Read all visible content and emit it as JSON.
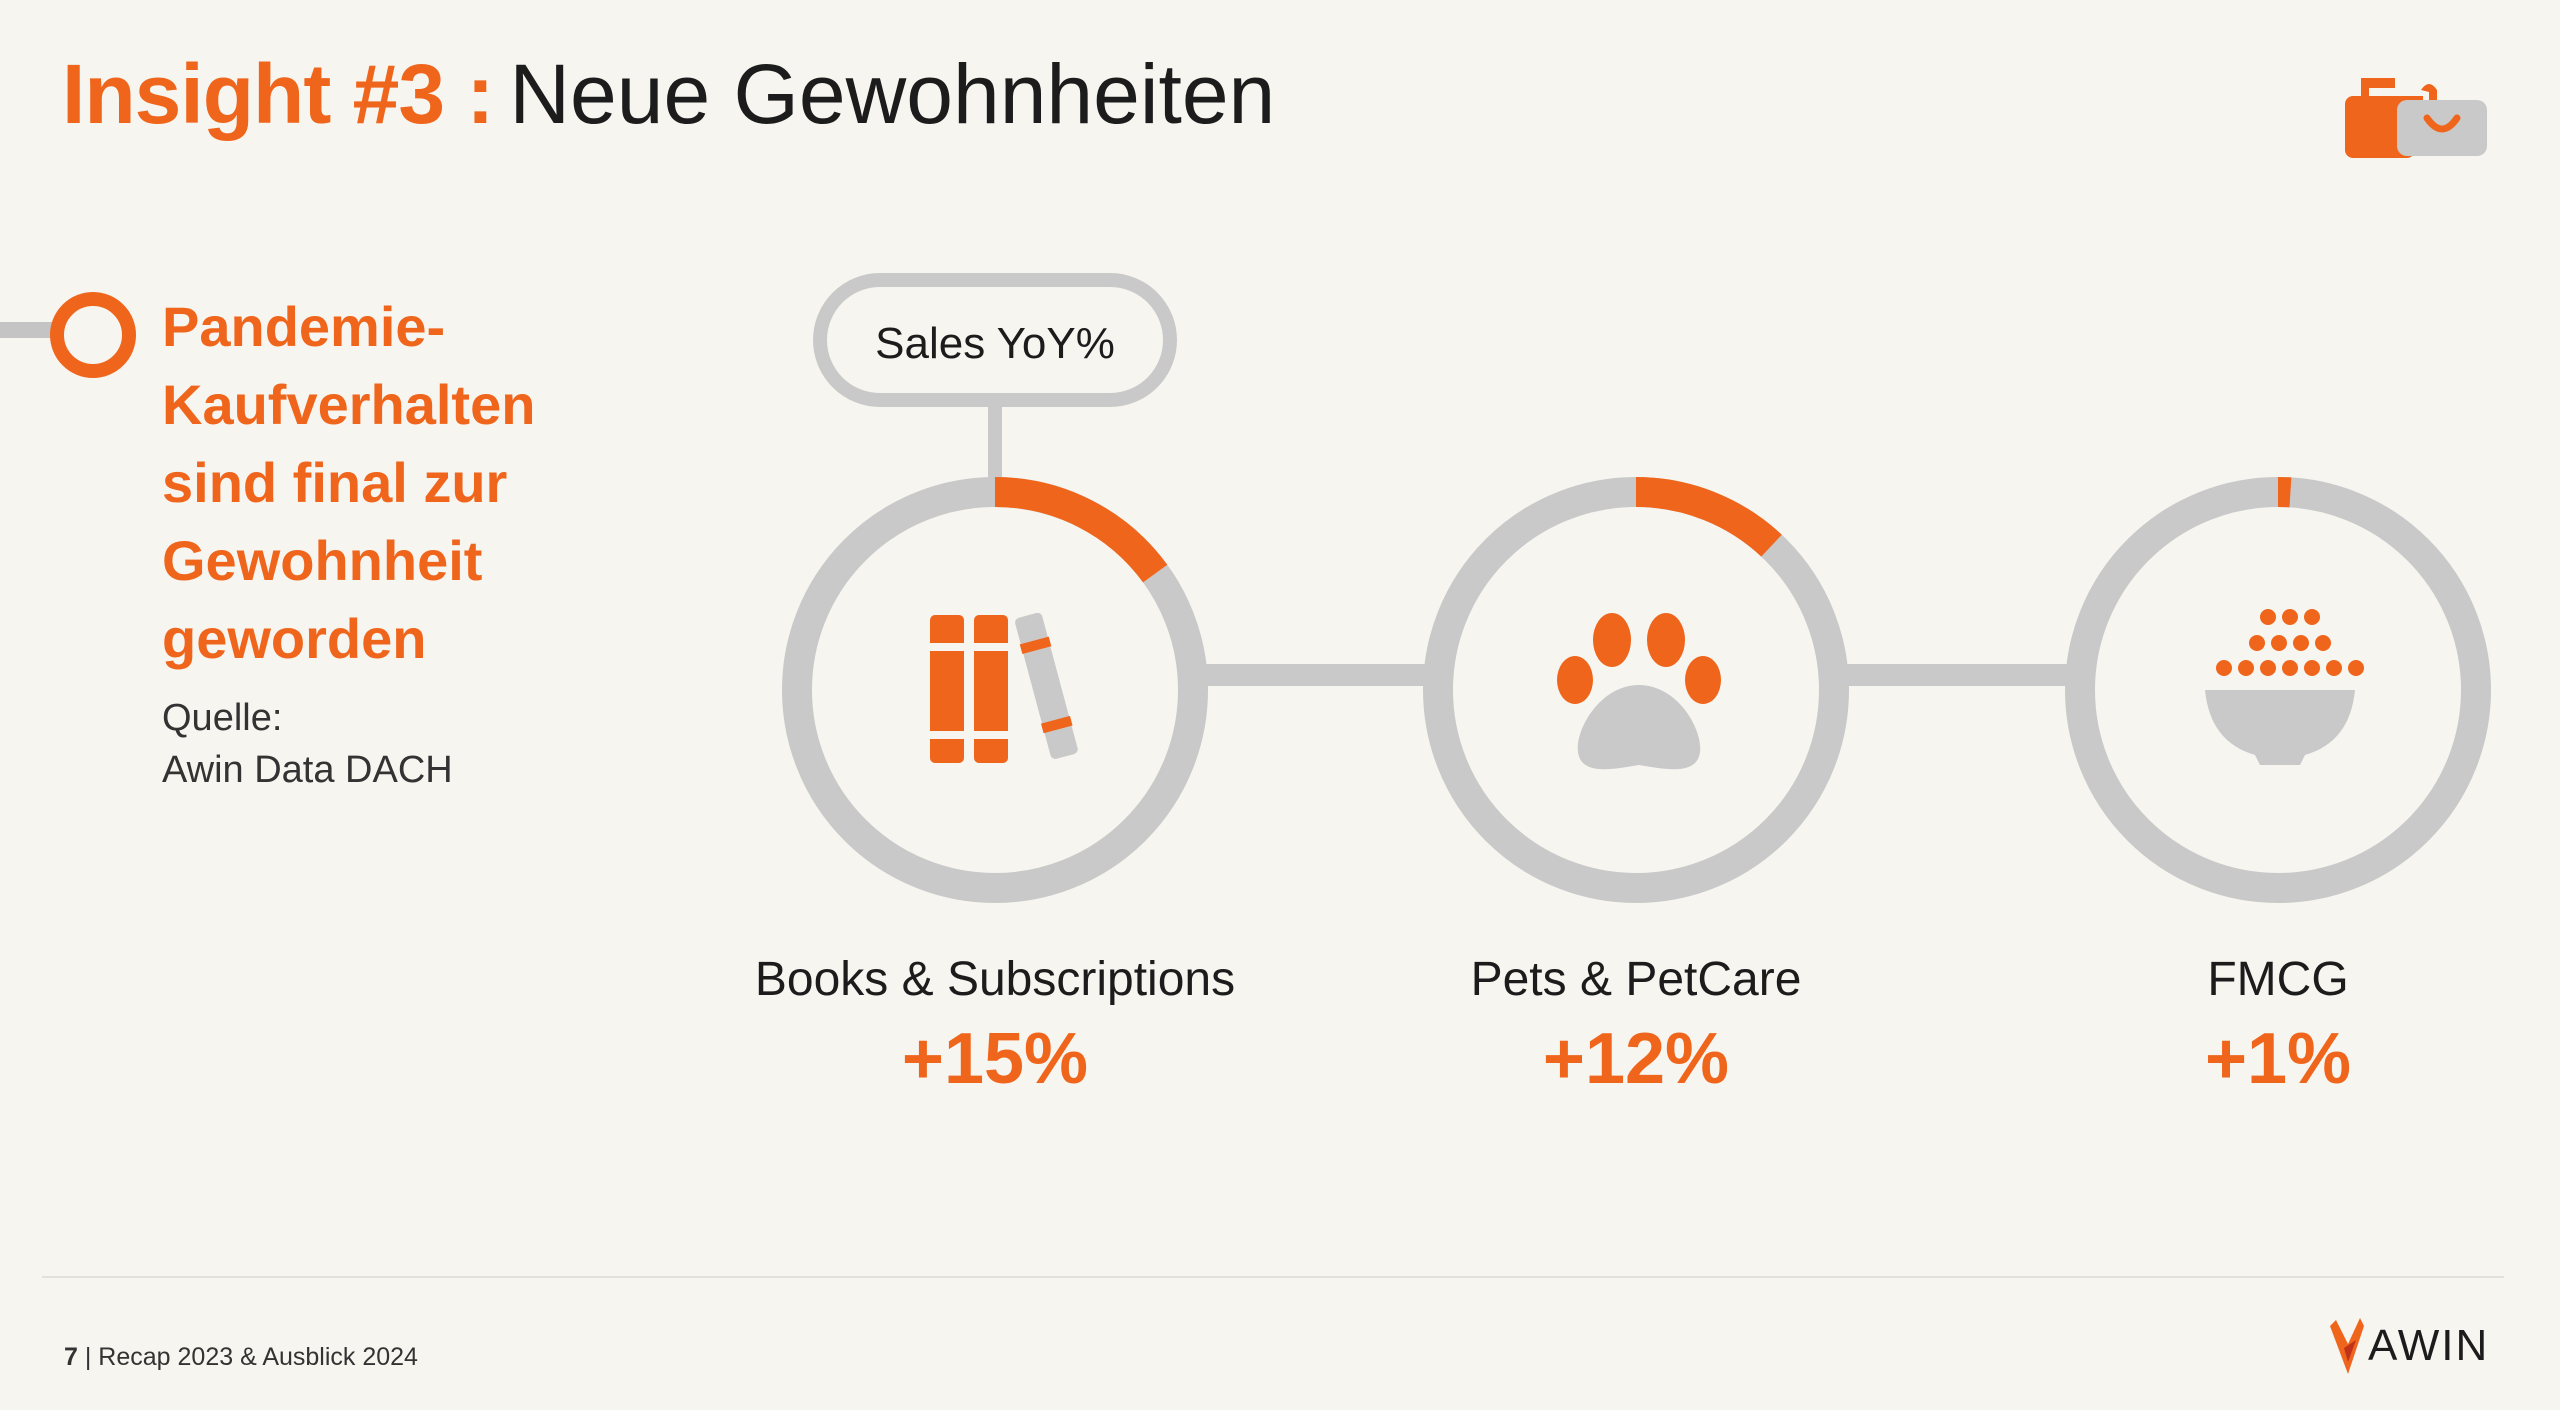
{
  "slide": {
    "title_accent": "Insight #3 :",
    "title_rest": "Neue Gewohnheiten",
    "headline_lines": [
      "Pandemie-",
      "Kaufverhalten",
      "sind final zur",
      "Gewohnheit",
      "geworden"
    ],
    "source_label": "Quelle:",
    "source_value": "Awin Data DACH",
    "footer_page": "7",
    "footer_text": "| Recap 2023 & Ausblick 2024",
    "logo_text": "AWIN"
  },
  "colors": {
    "accent": "#f0651c",
    "ring_gray": "#c9c9c9",
    "text_dark": "#1c1c1c",
    "background": "#f6f5f0"
  },
  "icons": [
    "shopping-bag-icon",
    "bullet-ring-icon",
    "books-icon",
    "paw-icon",
    "food-bowl-icon",
    "awin-flame-icon"
  ],
  "chart_data": {
    "type": "pie",
    "title": "Sales YoY%",
    "unit": "%",
    "categories": [
      "Books & Subscriptions",
      "Pets & PetCare",
      "FMCG"
    ],
    "values": [
      15,
      12,
      1
    ],
    "value_labels": [
      "+15%",
      "+12%",
      "+1%"
    ],
    "max": 100
  }
}
